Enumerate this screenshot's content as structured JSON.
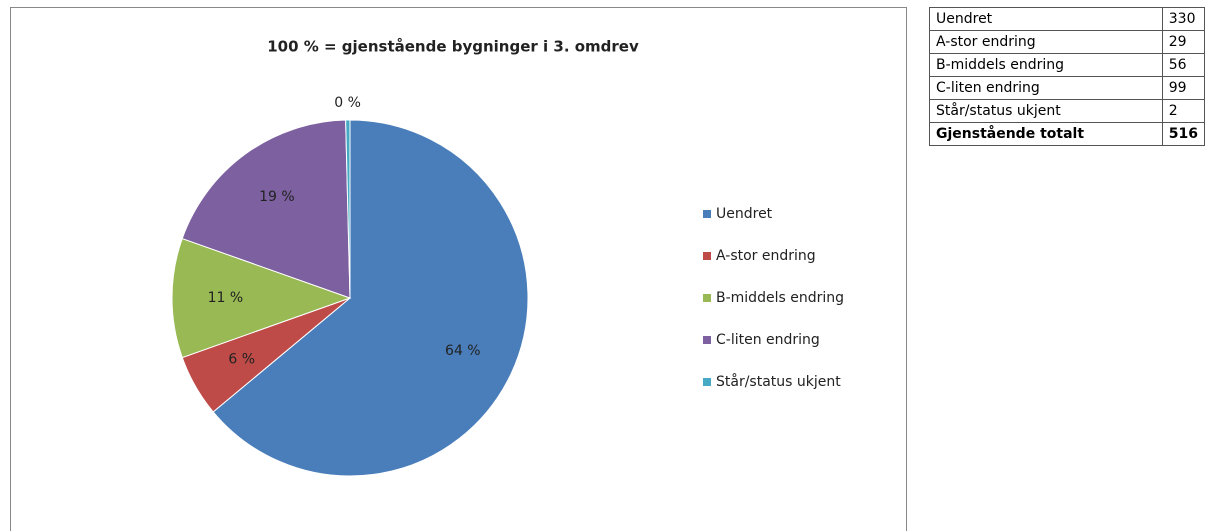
{
  "chart_data": {
    "type": "pie",
    "title": "100 % = gjenstående bygninger i 3. omdrev",
    "categories": [
      "Uendret",
      "A-stor endring",
      "B-middels endring",
      "C-liten endring",
      "Står/status ukjent"
    ],
    "values": [
      63.95,
      5.62,
      10.85,
      19.19,
      0.39
    ],
    "value_labels": [
      "64 %",
      "6 %",
      "11 %",
      "19 %",
      "0 %"
    ],
    "colors": [
      "#4a7ebb",
      "#be4b48",
      "#98b954",
      "#7d60a0",
      "#46aac5"
    ],
    "legend": "right"
  },
  "table": {
    "rows": [
      [
        "Uendret",
        "330"
      ],
      [
        "A-stor endring",
        "29"
      ],
      [
        "B-middels endring",
        "56"
      ],
      [
        "C-liten endring",
        "99"
      ],
      [
        "Står/status ukjent",
        "2"
      ],
      [
        "Gjenstående totalt",
        "516"
      ]
    ]
  }
}
